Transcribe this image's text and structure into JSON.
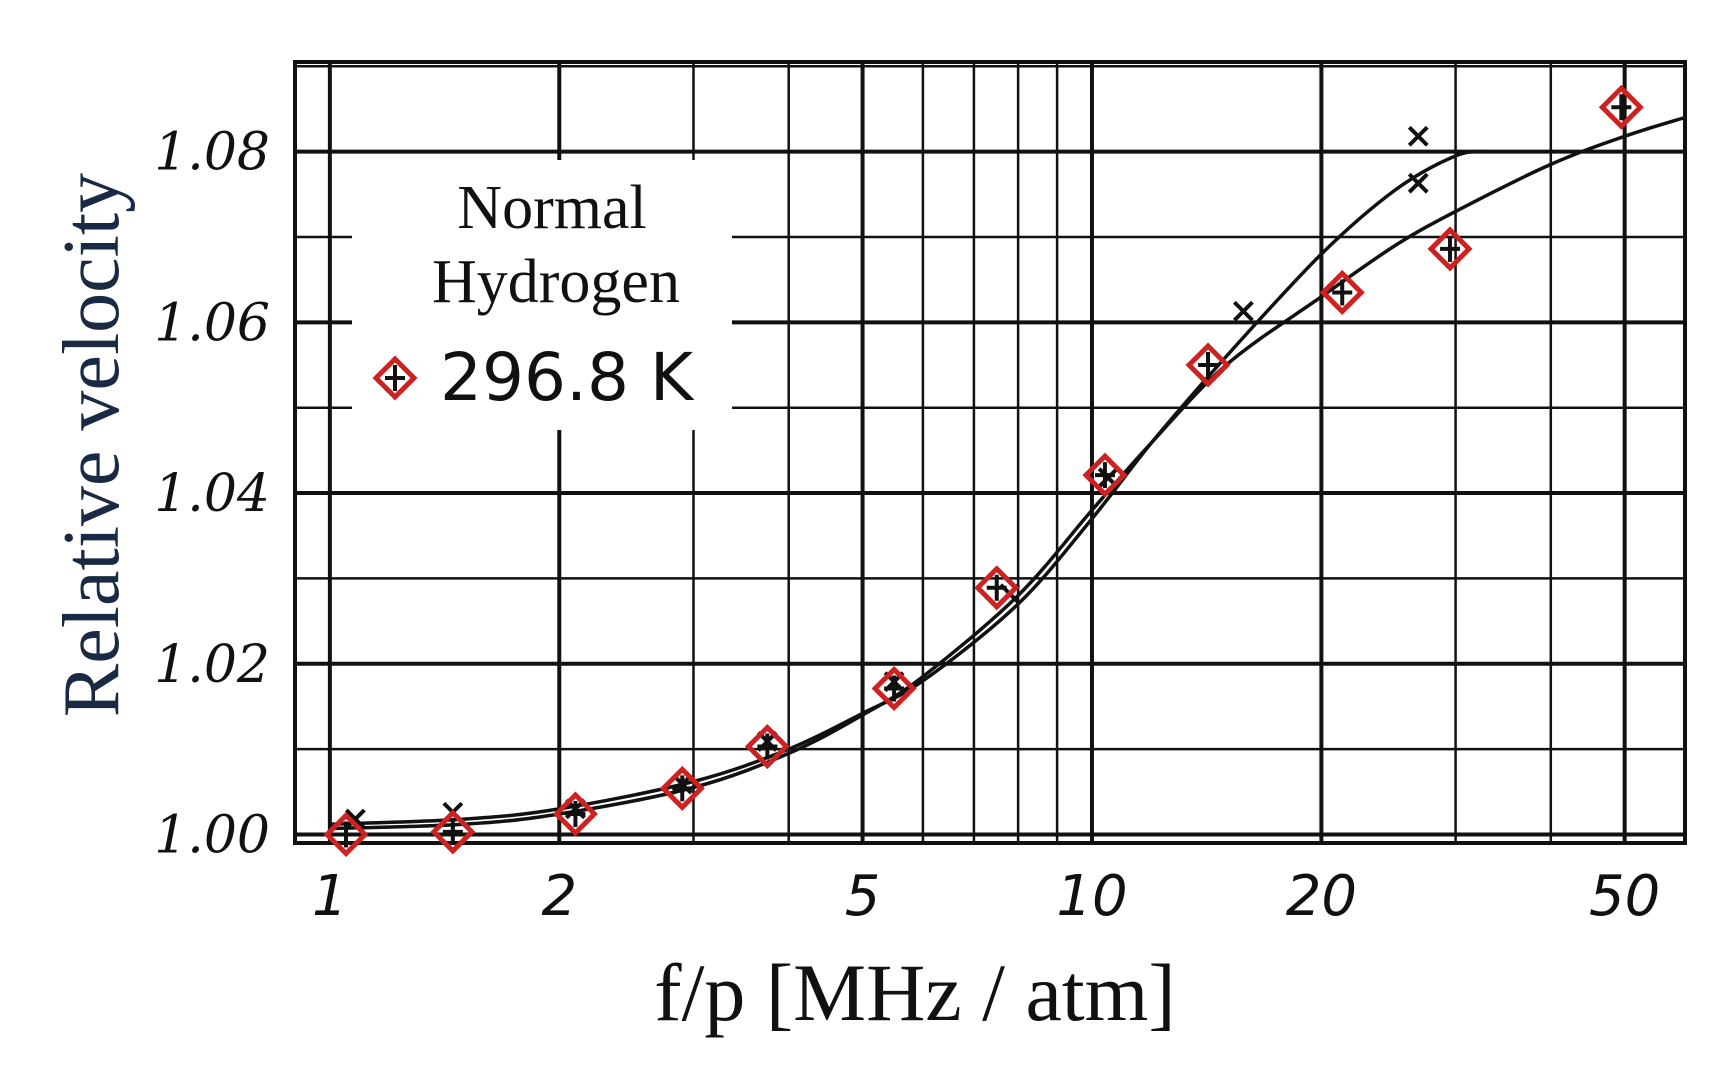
{
  "chart_data": {
    "type": "scatter",
    "title": "",
    "xlabel": "f/p [MHz / atm]",
    "ylabel": "Relative velocity",
    "x_scale": "log",
    "xlim": [
      0.9,
      60
    ],
    "ylim": [
      0.999,
      1.0905
    ],
    "x_ticks": [
      {
        "value": 1,
        "label": "1"
      },
      {
        "value": 2,
        "label": "2"
      },
      {
        "value": 5,
        "label": "5"
      },
      {
        "value": 10,
        "label": "10"
      },
      {
        "value": 20,
        "label": "20"
      },
      {
        "value": 50,
        "label": "50"
      }
    ],
    "y_ticks": [
      {
        "value": 1.0,
        "label": "1.00"
      },
      {
        "value": 1.02,
        "label": "1.02"
      },
      {
        "value": 1.04,
        "label": "1.04"
      },
      {
        "value": 1.06,
        "label": "1.06"
      },
      {
        "value": 1.08,
        "label": "1.08"
      }
    ],
    "grid": true,
    "legend": {
      "position": "top-left",
      "title": [
        "Normal",
        "Hydrogen"
      ],
      "entries": [
        {
          "label": "296.8 K",
          "marker": "diamond-plus",
          "color": "#cc2222"
        }
      ]
    },
    "series": [
      {
        "name": "296.8 K",
        "marker": "diamond-plus",
        "color": "#cc2222",
        "x": [
          1.05,
          1.45,
          2.1,
          2.9,
          3.75,
          5.5,
          7.5,
          10.4,
          14.2,
          21.3,
          29.5,
          49.5
        ],
        "y": [
          1.0,
          1.0003,
          1.0024,
          1.0054,
          1.0103,
          1.0171,
          1.0289,
          1.0421,
          1.055,
          1.0635,
          1.0686,
          1.0852
        ]
      },
      {
        "marker": "cross",
        "color": "#111111",
        "x": [
          1.08,
          1.45,
          2.1,
          2.9,
          3.75,
          5.5,
          7.8,
          10.5,
          15.8,
          26.8,
          26.8
        ],
        "y": [
          1.0018,
          1.0026,
          1.003,
          1.0059,
          1.0109,
          1.0179,
          1.0282,
          1.0418,
          1.0613,
          1.0763,
          1.0818
        ]
      }
    ],
    "curves": [
      {
        "x": [
          1.0,
          1.5,
          2.0,
          3.0,
          4.0,
          5.0,
          6.0,
          8.0,
          10.0,
          12.0,
          15.0,
          20.0,
          25.0,
          30.0,
          40.0,
          50.0,
          60.0
        ],
        "y": [
          1.0007,
          1.0012,
          1.0024,
          1.0055,
          1.0095,
          1.014,
          1.0185,
          1.028,
          1.038,
          1.046,
          1.055,
          1.063,
          1.069,
          1.073,
          1.0785,
          1.0818,
          1.084
        ]
      },
      {
        "x": [
          1.0,
          1.5,
          2.0,
          3.0,
          4.0,
          5.0,
          6.0,
          8.0,
          10.0,
          12.0,
          15.0,
          20.0,
          25.0,
          30.0,
          33.0
        ],
        "y": [
          1.0012,
          1.0018,
          1.003,
          1.0062,
          1.01,
          1.0142,
          1.018,
          1.027,
          1.037,
          1.046,
          1.056,
          1.068,
          1.0755,
          1.0795,
          1.08
        ]
      }
    ]
  }
}
